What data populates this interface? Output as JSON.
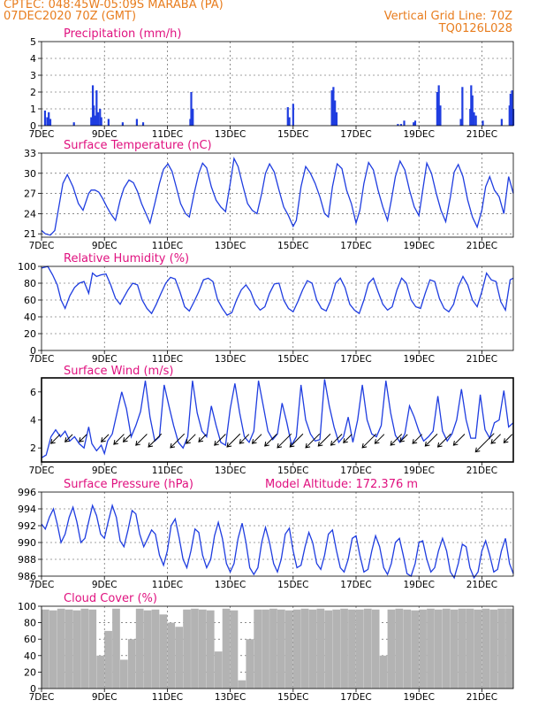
{
  "header": {
    "line1": "CPTEC:   048:45W-05:09S   MARABA (PA)",
    "line2": "07DEC2020 70Z (GMT)",
    "right1": "Vertical Grid Line: 70Z",
    "right2": "TQ0126L028",
    "color": "#e87d1e"
  },
  "colors": {
    "title": "#e0117f",
    "series": "#1f3de0",
    "bars": "#1f3de0",
    "cloud": "#b3b3b3",
    "wind_arrow": "#000000",
    "grid": "#444444"
  },
  "x_axis": {
    "tick_labels": [
      "7DEC",
      "9DEC",
      "11DEC",
      "13DEC",
      "15DEC",
      "17DEC",
      "19DEC",
      "21DEC"
    ],
    "tick_days": [
      0,
      2,
      4,
      6,
      8,
      10,
      12,
      14
    ],
    "range_days": [
      0,
      15
    ]
  },
  "chart_data": [
    {
      "type": "bar",
      "title": "Precipitation (mm/h)",
      "ylim": [
        0,
        5
      ],
      "yticks": [
        0,
        1,
        2,
        3,
        4,
        5
      ],
      "grid": true,
      "x": [
        0.08,
        0.15,
        0.2,
        0.25,
        1.0,
        1.55,
        1.6,
        1.63,
        1.67,
        1.72,
        1.77,
        1.83,
        1.87,
        2.1,
        2.55,
        3.0,
        3.2,
        4.7,
        4.73,
        4.78,
        7.8,
        7.85,
        7.97,
        9.2,
        9.25,
        9.3,
        9.35,
        11.3,
        11.4,
        11.5,
        11.8,
        11.85,
        12.55,
        12.6,
        12.65,
        13.3,
        13.35,
        13.6,
        13.63,
        13.67,
        13.72,
        13.78,
        14.0,
        14.6,
        14.85,
        14.88,
        14.93,
        14.97
      ],
      "values": [
        0.9,
        0.5,
        0.8,
        0.4,
        0.2,
        0.5,
        2.4,
        1.2,
        0.6,
        2.1,
        0.8,
        1.0,
        0.5,
        0.4,
        0.2,
        0.4,
        0.2,
        0.4,
        2.0,
        1.0,
        1.1,
        0.5,
        1.3,
        2.1,
        2.3,
        1.5,
        0.8,
        0.1,
        0.1,
        0.3,
        0.2,
        0.3,
        2.0,
        2.4,
        1.2,
        0.4,
        2.3,
        1.0,
        2.4,
        1.8,
        0.8,
        0.6,
        0.3,
        0.4,
        1.2,
        1.9,
        2.1,
        1.0
      ]
    },
    {
      "type": "line",
      "title": "Surface Temperature (nC)",
      "ylim": [
        20.5,
        33
      ],
      "yticks": [
        21,
        24,
        27,
        30,
        33
      ],
      "grid": true,
      "x": [
        0,
        0.12,
        0.28,
        0.42,
        0.55,
        0.68,
        0.82,
        1.0,
        1.17,
        1.32,
        1.5,
        1.58,
        1.7,
        1.82,
        1.95,
        2.08,
        2.2,
        2.35,
        2.5,
        2.62,
        2.78,
        2.92,
        3.05,
        3.18,
        3.32,
        3.45,
        3.6,
        3.75,
        3.88,
        4.02,
        4.15,
        4.28,
        4.42,
        4.58,
        4.7,
        4.85,
        5.0,
        5.12,
        5.25,
        5.4,
        5.55,
        5.7,
        5.85,
        6.0,
        6.12,
        6.25,
        6.4,
        6.55,
        6.7,
        6.85,
        7.0,
        7.12,
        7.25,
        7.4,
        7.55,
        7.7,
        7.85,
        8.0,
        8.1,
        8.25,
        8.4,
        8.55,
        8.7,
        8.85,
        9.0,
        9.12,
        9.25,
        9.4,
        9.55,
        9.7,
        9.85,
        10.0,
        10.12,
        10.25,
        10.4,
        10.55,
        10.7,
        10.85,
        11.0,
        11.12,
        11.25,
        11.4,
        11.55,
        11.7,
        11.85,
        12.0,
        12.12,
        12.25,
        12.4,
        12.55,
        12.7,
        12.85,
        13.0,
        13.12,
        13.25,
        13.4,
        13.55,
        13.7,
        13.85,
        14.0,
        14.12,
        14.25,
        14.4,
        14.55,
        14.7,
        14.85,
        15.0
      ],
      "values": [
        21.5,
        21.0,
        20.8,
        21.5,
        25.0,
        28.5,
        29.8,
        28.0,
        25.5,
        24.5,
        27.0,
        27.5,
        27.5,
        27.2,
        26.2,
        25.0,
        24.0,
        23.0,
        26.0,
        27.8,
        29.0,
        28.6,
        27.3,
        25.5,
        24.0,
        22.6,
        25.5,
        28.5,
        30.6,
        31.4,
        30.3,
        28.0,
        25.5,
        24.0,
        23.5,
        27.0,
        30.0,
        31.5,
        30.8,
        28.0,
        26.0,
        25.0,
        24.3,
        28.5,
        32.2,
        31.0,
        28.2,
        25.5,
        24.5,
        24.0,
        27.0,
        30.0,
        31.4,
        30.2,
        27.5,
        25.0,
        23.7,
        22.1,
        23.0,
        28.0,
        31.0,
        30.0,
        28.5,
        26.5,
        24.0,
        23.5,
        28.0,
        31.4,
        30.7,
        27.5,
        25.5,
        22.6,
        24.5,
        28.5,
        31.6,
        30.5,
        27.5,
        25.0,
        23.0,
        26.0,
        29.5,
        31.8,
        30.5,
        27.5,
        25.0,
        23.7,
        27.5,
        31.5,
        30.0,
        27.0,
        24.5,
        22.8,
        26.5,
        30.2,
        31.3,
        29.5,
        26.0,
        23.5,
        22.0,
        24.5,
        28.0,
        29.5,
        27.5,
        26.5,
        24.0,
        29.5,
        27.0
      ]
    },
    {
      "type": "line",
      "title": "Relative Humidity (%)",
      "ylim": [
        0,
        100
      ],
      "yticks": [
        0,
        20,
        40,
        60,
        80,
        100
      ],
      "grid": true,
      "x": [
        0,
        0.2,
        0.35,
        0.5,
        0.62,
        0.75,
        0.9,
        1.05,
        1.2,
        1.35,
        1.5,
        1.62,
        1.75,
        1.9,
        2.05,
        2.2,
        2.35,
        2.5,
        2.6,
        2.75,
        2.9,
        3.05,
        3.2,
        3.35,
        3.5,
        3.65,
        3.8,
        3.95,
        4.1,
        4.25,
        4.4,
        4.55,
        4.7,
        4.85,
        5.0,
        5.15,
        5.3,
        5.45,
        5.6,
        5.75,
        5.9,
        6.05,
        6.2,
        6.35,
        6.5,
        6.65,
        6.8,
        6.95,
        7.1,
        7.25,
        7.4,
        7.55,
        7.7,
        7.85,
        8.0,
        8.15,
        8.3,
        8.45,
        8.6,
        8.75,
        8.9,
        9.05,
        9.2,
        9.35,
        9.5,
        9.65,
        9.8,
        9.95,
        10.1,
        10.25,
        10.4,
        10.55,
        10.7,
        10.85,
        11.0,
        11.15,
        11.3,
        11.45,
        11.6,
        11.75,
        11.9,
        12.05,
        12.2,
        12.35,
        12.5,
        12.65,
        12.8,
        12.95,
        13.1,
        13.25,
        13.4,
        13.55,
        13.7,
        13.85,
        14.0,
        14.15,
        14.3,
        14.45,
        14.6,
        14.75,
        14.9,
        15.0
      ],
      "values": [
        98,
        100,
        90,
        78,
        60,
        50,
        65,
        75,
        80,
        82,
        68,
        92,
        88,
        90,
        91,
        78,
        62,
        55,
        62,
        72,
        80,
        78,
        60,
        50,
        44,
        55,
        68,
        80,
        87,
        85,
        70,
        52,
        47,
        58,
        70,
        84,
        86,
        82,
        60,
        50,
        42,
        45,
        60,
        72,
        78,
        70,
        55,
        48,
        52,
        68,
        79,
        80,
        60,
        50,
        46,
        58,
        72,
        83,
        80,
        60,
        50,
        47,
        60,
        80,
        86,
        75,
        55,
        48,
        44,
        60,
        80,
        86,
        70,
        55,
        48,
        52,
        72,
        86,
        80,
        60,
        52,
        50,
        68,
        84,
        82,
        62,
        50,
        46,
        55,
        76,
        88,
        78,
        60,
        52,
        70,
        92,
        84,
        82,
        58,
        48,
        84,
        86
      ]
    },
    {
      "type": "line",
      "title": "Surface Wind (m/s)",
      "ylim": [
        1,
        7
      ],
      "yticks": [
        2,
        4,
        6
      ],
      "grid": false,
      "x": [
        0,
        0.15,
        0.3,
        0.45,
        0.6,
        0.75,
        0.9,
        1.05,
        1.2,
        1.35,
        1.5,
        1.6,
        1.75,
        1.9,
        2.0,
        2.1,
        2.25,
        2.4,
        2.55,
        2.7,
        2.85,
        3.0,
        3.15,
        3.3,
        3.45,
        3.6,
        3.75,
        3.9,
        4.05,
        4.2,
        4.35,
        4.5,
        4.65,
        4.8,
        4.95,
        5.1,
        5.25,
        5.4,
        5.55,
        5.7,
        5.85,
        6.0,
        6.15,
        6.3,
        6.45,
        6.6,
        6.75,
        6.9,
        7.05,
        7.2,
        7.35,
        7.5,
        7.65,
        7.8,
        7.95,
        8.1,
        8.25,
        8.4,
        8.55,
        8.7,
        8.85,
        9.0,
        9.15,
        9.3,
        9.45,
        9.6,
        9.75,
        9.9,
        10.05,
        10.2,
        10.35,
        10.5,
        10.65,
        10.8,
        10.95,
        11.1,
        11.25,
        11.4,
        11.55,
        11.7,
        11.85,
        12.0,
        12.15,
        12.3,
        12.45,
        12.6,
        12.75,
        12.9,
        13.05,
        13.2,
        13.35,
        13.5,
        13.65,
        13.8,
        13.95,
        14.1,
        14.25,
        14.4,
        14.55,
        14.7,
        14.85,
        15.0
      ],
      "values": [
        1.3,
        1.5,
        2.8,
        3.3,
        2.8,
        3.2,
        2.5,
        2.8,
        2.3,
        2.0,
        3.5,
        2.3,
        1.8,
        2.2,
        1.6,
        2.5,
        3.0,
        4.5,
        6.0,
        4.8,
        2.8,
        3.6,
        4.6,
        6.8,
        4.2,
        2.5,
        2.8,
        6.5,
        5.0,
        3.6,
        2.4,
        2.0,
        2.8,
        6.8,
        4.5,
        3.2,
        2.8,
        5.0,
        3.6,
        2.4,
        2.2,
        4.8,
        6.6,
        4.5,
        2.8,
        2.4,
        3.2,
        6.8,
        5.0,
        3.2,
        2.6,
        3.0,
        5.2,
        3.8,
        2.2,
        2.8,
        6.5,
        4.0,
        3.0,
        2.5,
        2.6,
        6.9,
        5.0,
        3.5,
        2.4,
        2.8,
        4.2,
        2.4,
        4.0,
        6.5,
        4.0,
        3.0,
        2.8,
        3.6,
        6.8,
        4.5,
        2.9,
        2.4,
        3.0,
        5.0,
        4.2,
        3.2,
        2.5,
        2.8,
        3.2,
        5.7,
        3.2,
        2.5,
        3.0,
        4.0,
        6.2,
        4.0,
        2.7,
        2.7,
        5.8,
        3.3,
        2.7,
        3.8,
        4.0,
        6.1,
        3.5,
        3.8
      ],
      "arrows": {
        "x": [
          0.3,
          0.75,
          1.2,
          1.9,
          2.3,
          2.6,
          3.0,
          3.4,
          4.1,
          4.6,
          5.0,
          5.5,
          5.9,
          6.3,
          6.7,
          7.1,
          7.5,
          7.9,
          8.4,
          8.8,
          9.2,
          9.6,
          10.2,
          10.6,
          11.1,
          11.4,
          11.8,
          12.2,
          12.6,
          13.1,
          13.8,
          14.3,
          14.7
        ],
        "speed": [
          2.0,
          1.6,
          1.6,
          1.6,
          2.2,
          1.6,
          2.4,
          2.8,
          3.0,
          2.0,
          1.6,
          2.4,
          2.8,
          2.0,
          2.0,
          2.6,
          3.0,
          2.8,
          3.0,
          2.6,
          2.4,
          1.8,
          3.0,
          2.0,
          2.4,
          1.6,
          2.0,
          2.6,
          2.8,
          2.4,
          4.0,
          2.0,
          1.8
        ]
      }
    },
    {
      "type": "line",
      "title": "Surface Pressure (hPa)",
      "note": "Model Altitude: 172.376  m",
      "ylim": [
        986,
        996
      ],
      "yticks": [
        986,
        988,
        990,
        992,
        994,
        996
      ],
      "grid": true,
      "x": [
        0,
        0.12,
        0.25,
        0.38,
        0.5,
        0.62,
        0.75,
        0.88,
        1.0,
        1.12,
        1.25,
        1.38,
        1.5,
        1.62,
        1.75,
        1.88,
        2.0,
        2.12,
        2.25,
        2.38,
        2.5,
        2.62,
        2.75,
        2.88,
        3.0,
        3.12,
        3.25,
        3.38,
        3.5,
        3.62,
        3.75,
        3.88,
        4.0,
        4.12,
        4.25,
        4.38,
        4.5,
        4.62,
        4.75,
        4.88,
        5.0,
        5.12,
        5.25,
        5.38,
        5.5,
        5.62,
        5.75,
        5.88,
        6.0,
        6.12,
        6.25,
        6.38,
        6.5,
        6.62,
        6.75,
        6.88,
        7.0,
        7.12,
        7.25,
        7.38,
        7.5,
        7.62,
        7.75,
        7.88,
        8.0,
        8.12,
        8.25,
        8.38,
        8.5,
        8.62,
        8.75,
        8.88,
        9.0,
        9.12,
        9.25,
        9.38,
        9.5,
        9.62,
        9.75,
        9.88,
        10.0,
        10.12,
        10.25,
        10.38,
        10.5,
        10.62,
        10.75,
        10.88,
        11.0,
        11.12,
        11.25,
        11.38,
        11.5,
        11.62,
        11.75,
        11.88,
        12.0,
        12.12,
        12.25,
        12.38,
        12.5,
        12.62,
        12.75,
        12.88,
        13.0,
        13.12,
        13.25,
        13.38,
        13.5,
        13.62,
        13.75,
        13.88,
        14.0,
        14.12,
        14.25,
        14.38,
        14.5,
        14.62,
        14.75,
        14.88,
        15.0
      ],
      "values": [
        992.2,
        991.6,
        993.0,
        994.0,
        992.2,
        990.0,
        991.0,
        993.0,
        994.2,
        992.5,
        990.0,
        990.5,
        992.5,
        994.4,
        993.2,
        991.0,
        990.5,
        992.5,
        994.4,
        993.0,
        990.2,
        989.5,
        991.5,
        993.8,
        993.4,
        991.0,
        989.5,
        990.5,
        991.5,
        991.0,
        988.5,
        987.3,
        989.0,
        992.0,
        992.8,
        990.5,
        988.0,
        987.0,
        989.0,
        991.6,
        991.2,
        988.5,
        987.0,
        988.0,
        990.8,
        992.4,
        990.5,
        987.5,
        986.5,
        987.5,
        990.5,
        992.3,
        990.0,
        987.0,
        986.2,
        987.0,
        990.0,
        991.8,
        990.0,
        987.5,
        986.5,
        988.0,
        991.0,
        991.7,
        989.0,
        987.0,
        987.3,
        989.5,
        991.2,
        990.0,
        987.5,
        986.8,
        988.5,
        991.0,
        991.5,
        989.0,
        987.0,
        986.5,
        988.0,
        990.5,
        990.8,
        988.5,
        986.5,
        986.8,
        989.0,
        990.8,
        989.5,
        987.0,
        986.2,
        987.5,
        990.0,
        990.5,
        988.5,
        986.3,
        986.0,
        987.5,
        990.0,
        990.2,
        988.0,
        986.5,
        987.0,
        989.0,
        990.5,
        989.0,
        986.5,
        985.8,
        987.5,
        989.8,
        989.5,
        987.0,
        985.8,
        986.5,
        989.0,
        990.2,
        988.5,
        986.5,
        986.8,
        989.0,
        990.5,
        987.5,
        986.3
      ]
    },
    {
      "type": "bar",
      "title": "Cloud Cover (%)",
      "ylim": [
        0,
        100
      ],
      "yticks": [
        0,
        20,
        40,
        60,
        80,
        100
      ],
      "grid": true,
      "x": [
        0,
        0.25,
        0.5,
        0.75,
        1.0,
        1.25,
        1.5,
        1.75,
        2.0,
        2.25,
        2.5,
        2.75,
        3.0,
        3.25,
        3.5,
        3.75,
        4.0,
        4.25,
        4.5,
        4.75,
        5.0,
        5.25,
        5.5,
        5.75,
        6.0,
        6.25,
        6.5,
        6.75,
        7.0,
        7.25,
        7.5,
        7.75,
        8.0,
        8.25,
        8.5,
        8.75,
        9.0,
        9.25,
        9.5,
        9.75,
        10.0,
        10.25,
        10.5,
        10.75,
        11.0,
        11.25,
        11.5,
        11.75,
        12.0,
        12.25,
        12.5,
        12.75,
        13.0,
        13.25,
        13.5,
        13.75,
        14.0,
        14.25,
        14.5,
        14.75
      ],
      "values": [
        96,
        95,
        97,
        96,
        95,
        97,
        96,
        40,
        70,
        97,
        35,
        60,
        97,
        95,
        96,
        90,
        80,
        75,
        96,
        97,
        96,
        95,
        45,
        97,
        95,
        10,
        60,
        96,
        96,
        97,
        96,
        95,
        96,
        97,
        96,
        97,
        95,
        96,
        97,
        96,
        96,
        97,
        96,
        40,
        96,
        97,
        96,
        95,
        96,
        97,
        96,
        97,
        96,
        97,
        97,
        96,
        97,
        96,
        97,
        97
      ]
    }
  ]
}
